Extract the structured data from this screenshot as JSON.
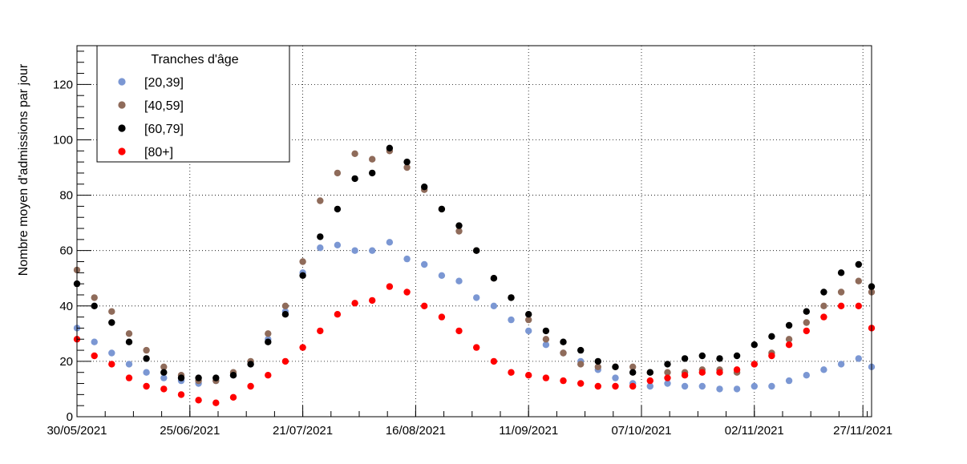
{
  "chart_data": {
    "type": "scatter",
    "title": "",
    "xlabel": "",
    "ylabel": "Nombre moyen d'admissions par jour",
    "x_start": "30/05/2021",
    "x_end": "29/11/2021",
    "xticks": [
      "30/05/2021",
      "25/06/2021",
      "21/07/2021",
      "16/08/2021",
      "11/09/2021",
      "07/10/2021",
      "02/11/2021",
      "27/11/2021"
    ],
    "ylim": [
      0,
      134
    ],
    "yticks": [
      0,
      20,
      40,
      60,
      80,
      100,
      120
    ],
    "grid": true,
    "legend": {
      "title": "Tranches d'âge",
      "position": "top-left"
    },
    "x": [
      "2021-05-30",
      "2021-06-03",
      "2021-06-07",
      "2021-06-11",
      "2021-06-15",
      "2021-06-19",
      "2021-06-23",
      "2021-06-27",
      "2021-07-01",
      "2021-07-05",
      "2021-07-09",
      "2021-07-13",
      "2021-07-17",
      "2021-07-21",
      "2021-07-25",
      "2021-07-29",
      "2021-08-02",
      "2021-08-06",
      "2021-08-10",
      "2021-08-14",
      "2021-08-18",
      "2021-08-22",
      "2021-08-26",
      "2021-08-30",
      "2021-09-03",
      "2021-09-07",
      "2021-09-11",
      "2021-09-15",
      "2021-09-19",
      "2021-09-23",
      "2021-09-27",
      "2021-10-01",
      "2021-10-05",
      "2021-10-09",
      "2021-10-13",
      "2021-10-17",
      "2021-10-21",
      "2021-10-25",
      "2021-10-29",
      "2021-11-02",
      "2021-11-06",
      "2021-11-10",
      "2021-11-14",
      "2021-11-18",
      "2021-11-22",
      "2021-11-26",
      "2021-11-29"
    ],
    "series": [
      {
        "name": "[20,39]",
        "color": "#7b97d3",
        "values": [
          32,
          27,
          23,
          19,
          16,
          14,
          13,
          12,
          13,
          15,
          19,
          28,
          38,
          52,
          61,
          62,
          60,
          60,
          63,
          57,
          55,
          51,
          49,
          43,
          40,
          35,
          31,
          26,
          23,
          20,
          17,
          14,
          12,
          11,
          12,
          11,
          11,
          10,
          10,
          11,
          11,
          13,
          15,
          17,
          19,
          21,
          18
        ]
      },
      {
        "name": "[40,59]",
        "color": "#8f6b5a",
        "values": [
          53,
          43,
          38,
          30,
          24,
          18,
          15,
          13,
          13,
          16,
          20,
          30,
          40,
          56,
          78,
          88,
          95,
          93,
          96,
          90,
          82,
          75,
          67,
          60,
          50,
          43,
          35,
          28,
          23,
          19,
          18,
          18,
          18,
          16,
          16,
          16,
          17,
          17,
          16,
          19,
          23,
          28,
          34,
          40,
          45,
          49,
          45
        ]
      },
      {
        "name": "[60,79]",
        "color": "#000000",
        "values": [
          48,
          40,
          34,
          27,
          21,
          16,
          14,
          14,
          14,
          15,
          19,
          27,
          37,
          51,
          65,
          75,
          86,
          88,
          97,
          92,
          83,
          75,
          69,
          60,
          50,
          43,
          37,
          31,
          27,
          24,
          20,
          18,
          16,
          16,
          19,
          21,
          22,
          21,
          22,
          26,
          29,
          33,
          38,
          45,
          52,
          55,
          47
        ]
      },
      {
        "name": "[80+]",
        "color": "#ff0000",
        "values": [
          28,
          22,
          19,
          14,
          11,
          10,
          8,
          6,
          5,
          7,
          11,
          15,
          20,
          25,
          31,
          37,
          41,
          42,
          47,
          45,
          40,
          36,
          31,
          25,
          20,
          16,
          15,
          14,
          13,
          12,
          11,
          11,
          11,
          13,
          14,
          15,
          16,
          16,
          17,
          19,
          22,
          26,
          31,
          36,
          40,
          40,
          32
        ]
      }
    ]
  }
}
